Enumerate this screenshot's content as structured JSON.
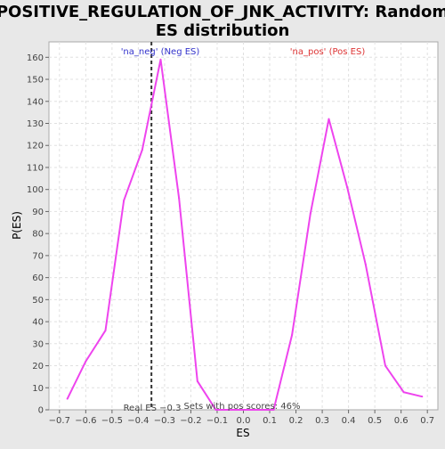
{
  "chart_data": {
    "type": "line",
    "title_line1": "POSITIVE_REGULATION_OF_JNK_ACTIVITY: Random",
    "title_line2": "ES distribution",
    "xlabel": "ES",
    "ylabel": "P(ES)",
    "xlim": [
      -0.74,
      0.74
    ],
    "ylim": [
      0,
      167
    ],
    "xticks": [
      -0.7,
      -0.6,
      -0.5,
      -0.4,
      -0.3,
      -0.2,
      -0.1,
      0.0,
      0.1,
      0.2,
      0.3,
      0.4,
      0.5,
      0.6,
      0.7
    ],
    "xtick_labels": [
      "−0.7",
      "−0.6",
      "−0.5",
      "−0.4",
      "−0.3",
      "−0.2",
      "−0.1",
      "0.0",
      "0.1",
      "0.2",
      "0.3",
      "0.4",
      "0.5",
      "0.6",
      "0.7"
    ],
    "yticks": [
      0,
      10,
      20,
      30,
      40,
      50,
      60,
      70,
      80,
      90,
      100,
      110,
      120,
      130,
      140,
      150,
      160
    ],
    "grid": true,
    "line_color": "#ee44ee",
    "series": [
      {
        "x": [
          -0.67,
          -0.6,
          -0.525,
          -0.455,
          -0.385,
          -0.315,
          -0.245,
          -0.175,
          -0.105,
          -0.035,
          0.035,
          0.115,
          0.185,
          0.255,
          0.325,
          0.395,
          0.465,
          0.54,
          0.61,
          0.68
        ],
        "values": [
          5,
          22,
          36,
          95,
          118,
          159,
          96,
          13,
          0,
          0,
          0,
          0,
          34,
          89,
          132,
          101,
          66,
          20,
          8,
          6
        ]
      }
    ],
    "real_es": -0.35,
    "annotations": {
      "neg_label": "'na_neg' (Neg ES)",
      "pos_label": "'na_pos' (Pos ES)",
      "real_es_label": "Real ES −0.3",
      "sets_label": "Sets with pos scores: 46%"
    },
    "colors": {
      "background": "#e8e8e8",
      "plot_background": "#ffffff",
      "grid": "#e0e0e0",
      "neg_text": "#3333cc",
      "pos_text": "#dd3333"
    }
  }
}
